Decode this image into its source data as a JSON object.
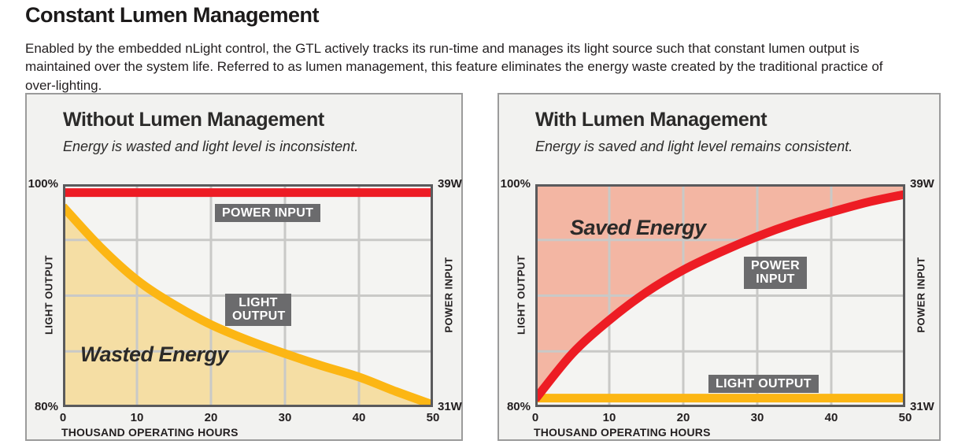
{
  "page": {
    "title": "Constant Lumen Management",
    "intro": "Enabled by the embedded nLight control, the GTL actively tracks its run-time and manages its light source such that constant lumen output is maintained over the system life. Referred to as lumen management, this feature eliminates the energy waste created by the traditional practice of over-lighting."
  },
  "colors": {
    "red": "#ED1C24",
    "yellow": "#FCB614",
    "tan_fill": "#F5DEA4",
    "salmon_fill": "#F3B6A3",
    "label_box": "#6B6B6D",
    "plot_bg": "#F4F4F2",
    "grid": "#C9C9C7",
    "plot_border": "#5A5A5C",
    "panel_border": "#9B9B9B",
    "panel_bg": "#F2F2F0",
    "text": "#231F20"
  },
  "chart_data": [
    {
      "type": "line",
      "panel_title": "Without Lumen Management",
      "panel_subtitle": "Energy is wasted and light level is inconsistent.",
      "annotation": "Wasted Energy",
      "xlabel": "THOUSAND OPERATING HOURS",
      "ylabel_left": "LIGHT OUTPUT",
      "ylabel_right": "POWER INPUT",
      "x_ticks": [
        "0",
        "10",
        "20",
        "30",
        "40",
        "50"
      ],
      "x_range": [
        0,
        50
      ],
      "y_left_range_pct": [
        80,
        100
      ],
      "y_left_tick_labels": [
        "80%",
        "100%"
      ],
      "y_right_tick_labels": [
        "31W",
        "39W"
      ],
      "grid": true,
      "x": [
        0,
        5,
        10,
        15,
        20,
        25,
        30,
        35,
        40,
        45,
        50
      ],
      "series": [
        {
          "name": "POWER INPUT",
          "color_key": "red",
          "values_pct": [
            99.25,
            99.25,
            99.25,
            99.25,
            99.25,
            99.25,
            99.25,
            99.25,
            99.25,
            99.25,
            99.25
          ]
        },
        {
          "name": "LIGHT OUTPUT",
          "color_key": "yellow",
          "fill_key": "tan_fill",
          "fill_to": "bottom",
          "values_pct": [
            98,
            94.4,
            91.4,
            89.2,
            87.4,
            86,
            84.8,
            83.7,
            82.7,
            81.4,
            80.2
          ]
        }
      ]
    },
    {
      "type": "line",
      "panel_title": "With Lumen Management",
      "panel_subtitle": "Energy is saved and light level remains consistent.",
      "annotation": "Saved Energy",
      "xlabel": "THOUSAND OPERATING HOURS",
      "ylabel_left": "LIGHT OUTPUT",
      "ylabel_right": "POWER INPUT",
      "x_ticks": [
        "0",
        "10",
        "20",
        "30",
        "40",
        "50"
      ],
      "x_range": [
        0,
        50
      ],
      "y_left_range_pct": [
        80,
        100
      ],
      "y_left_tick_labels": [
        "80%",
        "100%"
      ],
      "y_right_tick_labels": [
        "31W",
        "39W"
      ],
      "grid": true,
      "x": [
        0,
        5,
        10,
        15,
        20,
        25,
        30,
        35,
        40,
        45,
        50
      ],
      "series": [
        {
          "name": "LIGHT OUTPUT",
          "color_key": "yellow",
          "values_pct": [
            80.8,
            80.8,
            80.8,
            80.8,
            80.8,
            80.8,
            80.8,
            80.8,
            80.8,
            80.8,
            80.8
          ]
        },
        {
          "name": "POWER INPUT",
          "color_key": "red",
          "fill_key": "salmon_fill",
          "fill_to": "top",
          "values_pct": [
            80.7,
            84.8,
            87.8,
            90.3,
            92.3,
            93.9,
            95.3,
            96.5,
            97.5,
            98.4,
            99.1
          ]
        }
      ]
    }
  ]
}
